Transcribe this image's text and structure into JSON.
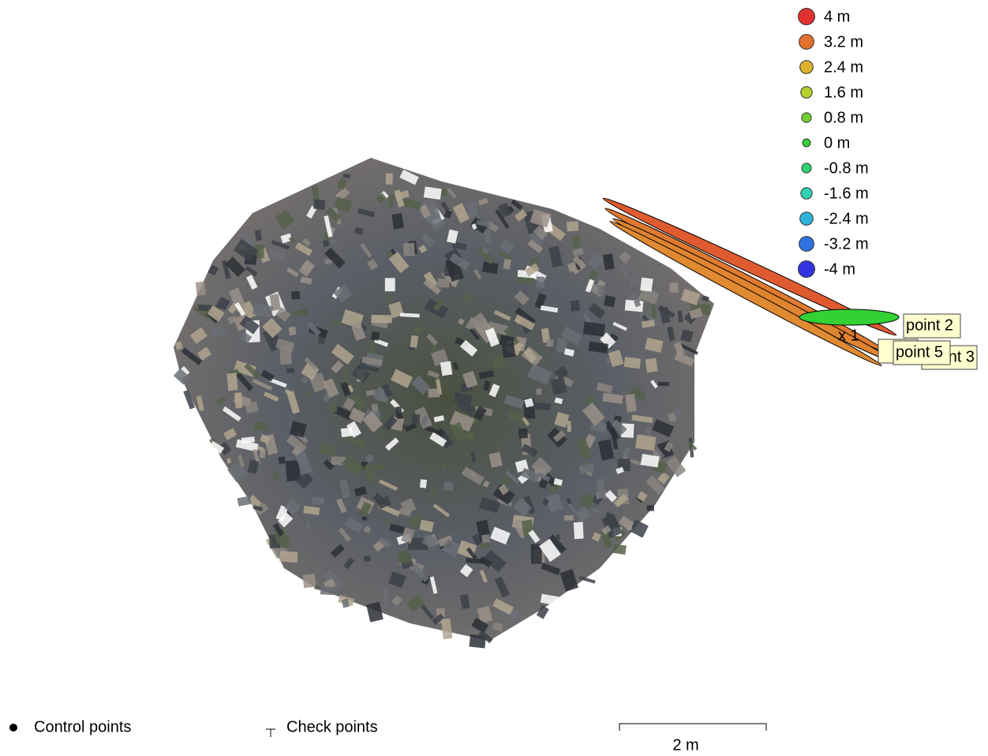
{
  "legend": {
    "items": [
      {
        "label": "4 m",
        "color": "#e03131"
      },
      {
        "label": "3.2 m",
        "color": "#e0712e"
      },
      {
        "label": "2.4 m",
        "color": "#ddb02e"
      },
      {
        "label": "1.6 m",
        "color": "#b9d12f"
      },
      {
        "label": "0.8 m",
        "color": "#73d12f"
      },
      {
        "label": "0 m",
        "color": "#33d133"
      },
      {
        "label": "-0.8 m",
        "color": "#30d170"
      },
      {
        "label": "-1.6 m",
        "color": "#30d1b2"
      },
      {
        "label": "-2.4 m",
        "color": "#30b2dd"
      },
      {
        "label": "-3.2 m",
        "color": "#3073e0"
      },
      {
        "label": "-4 m",
        "color": "#3333e0"
      }
    ]
  },
  "markers": {
    "x_label": "x 1",
    "points": [
      "point 2",
      "point 3",
      "point 5"
    ]
  },
  "footer": {
    "control_points": "Control points",
    "check_points": "Check points",
    "scale": "2 m"
  }
}
